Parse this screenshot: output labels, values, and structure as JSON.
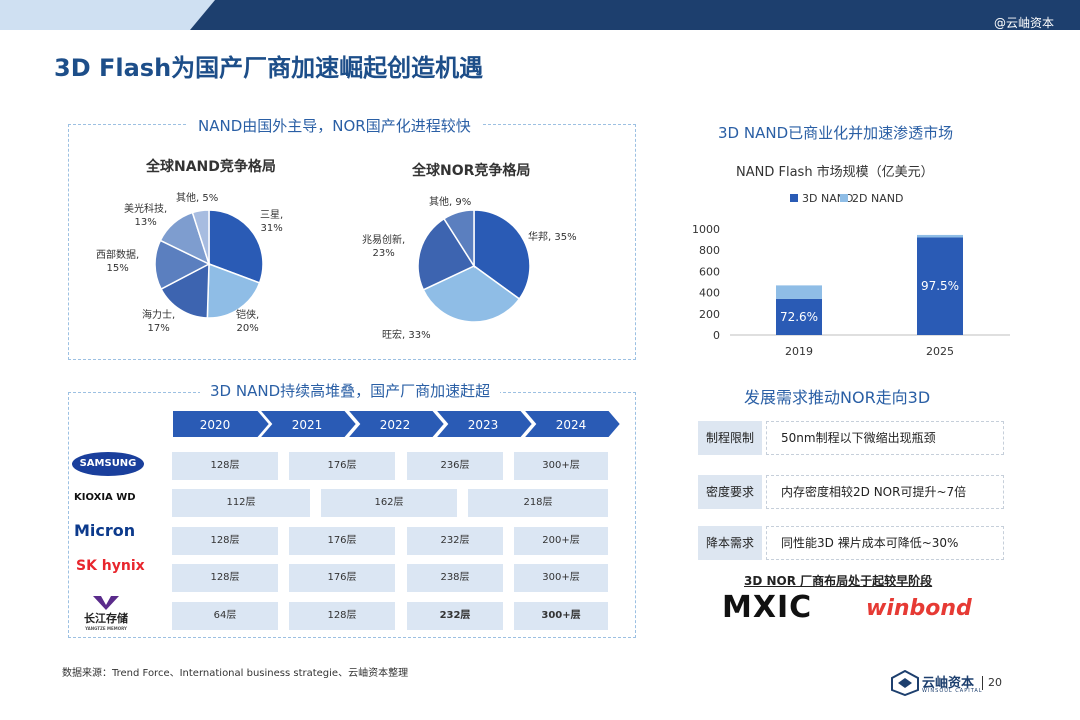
{
  "header": {
    "brand": "@云岫资本",
    "title": "3D Flash为国产厂商加速崛起创造机遇"
  },
  "nand_nor_box": {
    "title": "NAND由国外主导，NOR国产化进程较快"
  },
  "stack_box": {
    "title": "3D NAND持续高堆叠，国产厂商加速赶超"
  },
  "chart_data": [
    {
      "type": "pie",
      "title": "全球NAND竞争格局",
      "slices": [
        {
          "name": "三星",
          "value": 31,
          "label": "三星,\n31%",
          "color": "#2a5bb5"
        },
        {
          "name": "铠侠",
          "value": 20,
          "label": "铠侠,\n20%",
          "color": "#8fbde6"
        },
        {
          "name": "海力士",
          "value": 17,
          "label": "海力士,\n17%",
          "color": "#3d64b0"
        },
        {
          "name": "西部数据",
          "value": 15,
          "label": "西部数据,\n15%",
          "color": "#5b7fbf"
        },
        {
          "name": "美光科技",
          "value": 13,
          "label": "美光科技,\n13%",
          "color": "#7e9dcf"
        },
        {
          "name": "其他",
          "value": 5,
          "label": "其他, 5%",
          "color": "#a7bce0"
        }
      ]
    },
    {
      "type": "pie",
      "title": "全球NOR竞争格局",
      "slices": [
        {
          "name": "华邦",
          "value": 35,
          "label": "华邦, 35%",
          "color": "#2a5bb5"
        },
        {
          "name": "旺宏",
          "value": 33,
          "label": "旺宏, 33%",
          "color": "#8fbde6"
        },
        {
          "name": "兆易创新",
          "value": 23,
          "label": "兆易创新,\n23%",
          "color": "#3d64b0"
        },
        {
          "name": "其他",
          "value": 9,
          "label": "其他, 9%",
          "color": "#5b7fbf"
        }
      ]
    },
    {
      "type": "bar",
      "stacked": true,
      "title": "NAND Flash 市场规模（亿美元）",
      "categories": [
        "2019",
        "2025"
      ],
      "series": [
        {
          "name": "3D NAND",
          "values": [
            340,
            920
          ],
          "color": "#2a5bb5"
        },
        {
          "name": "2D NAND",
          "values": [
            128,
            24
          ],
          "color": "#8fbde6"
        }
      ],
      "data_labels": [
        "72.6%",
        "97.5%"
      ],
      "ylim": [
        0,
        1000
      ],
      "yticks": [
        "0",
        "200",
        "400",
        "600",
        "800",
        "1000"
      ],
      "legend_position": "top"
    }
  ],
  "market_section": {
    "title": "3D NAND已商业化并加速渗透市场"
  },
  "timeline": {
    "years": [
      "2020",
      "2021",
      "2022",
      "2023",
      "2024"
    ]
  },
  "vendors": [
    {
      "name": "SAMSUNG",
      "cells": [
        "128层",
        "176层",
        "236层",
        "300+层"
      ]
    },
    {
      "name": "KIOXIA WD",
      "cells": [
        "112层",
        "162层",
        "218层"
      ]
    },
    {
      "name": "Micron",
      "cells": [
        "128层",
        "176层",
        "232层",
        "200+层"
      ]
    },
    {
      "name": "SK hynix",
      "cells": [
        "128层",
        "176层",
        "238层",
        "300+层"
      ]
    },
    {
      "name": "长江存储",
      "sub": "YANGTZE MEMORY",
      "cells": [
        "64层",
        "128层",
        "232层",
        "300+层"
      ]
    }
  ],
  "nor_section": {
    "title": "发展需求推动NOR走向3D",
    "requirements": [
      {
        "label": "制程限制",
        "text": "50nm制程以下微缩出现瓶颈"
      },
      {
        "label": "密度要求",
        "text": "内存密度相较2D NOR可提升~7倍"
      },
      {
        "label": "降本需求",
        "text": "同性能3D 裸片成本可降低~30%"
      }
    ],
    "vendor_title": "3D NOR 厂商布局处于起较早阶段",
    "logo_mxic": "MXIC",
    "logo_winbond": "winbond"
  },
  "footer": {
    "source": "数据来源：Trend Force、International business strategie、云岫资本整理",
    "brand": "云岫资本",
    "brand_sub": "WINSOUL CAPITAL",
    "page": "20"
  }
}
